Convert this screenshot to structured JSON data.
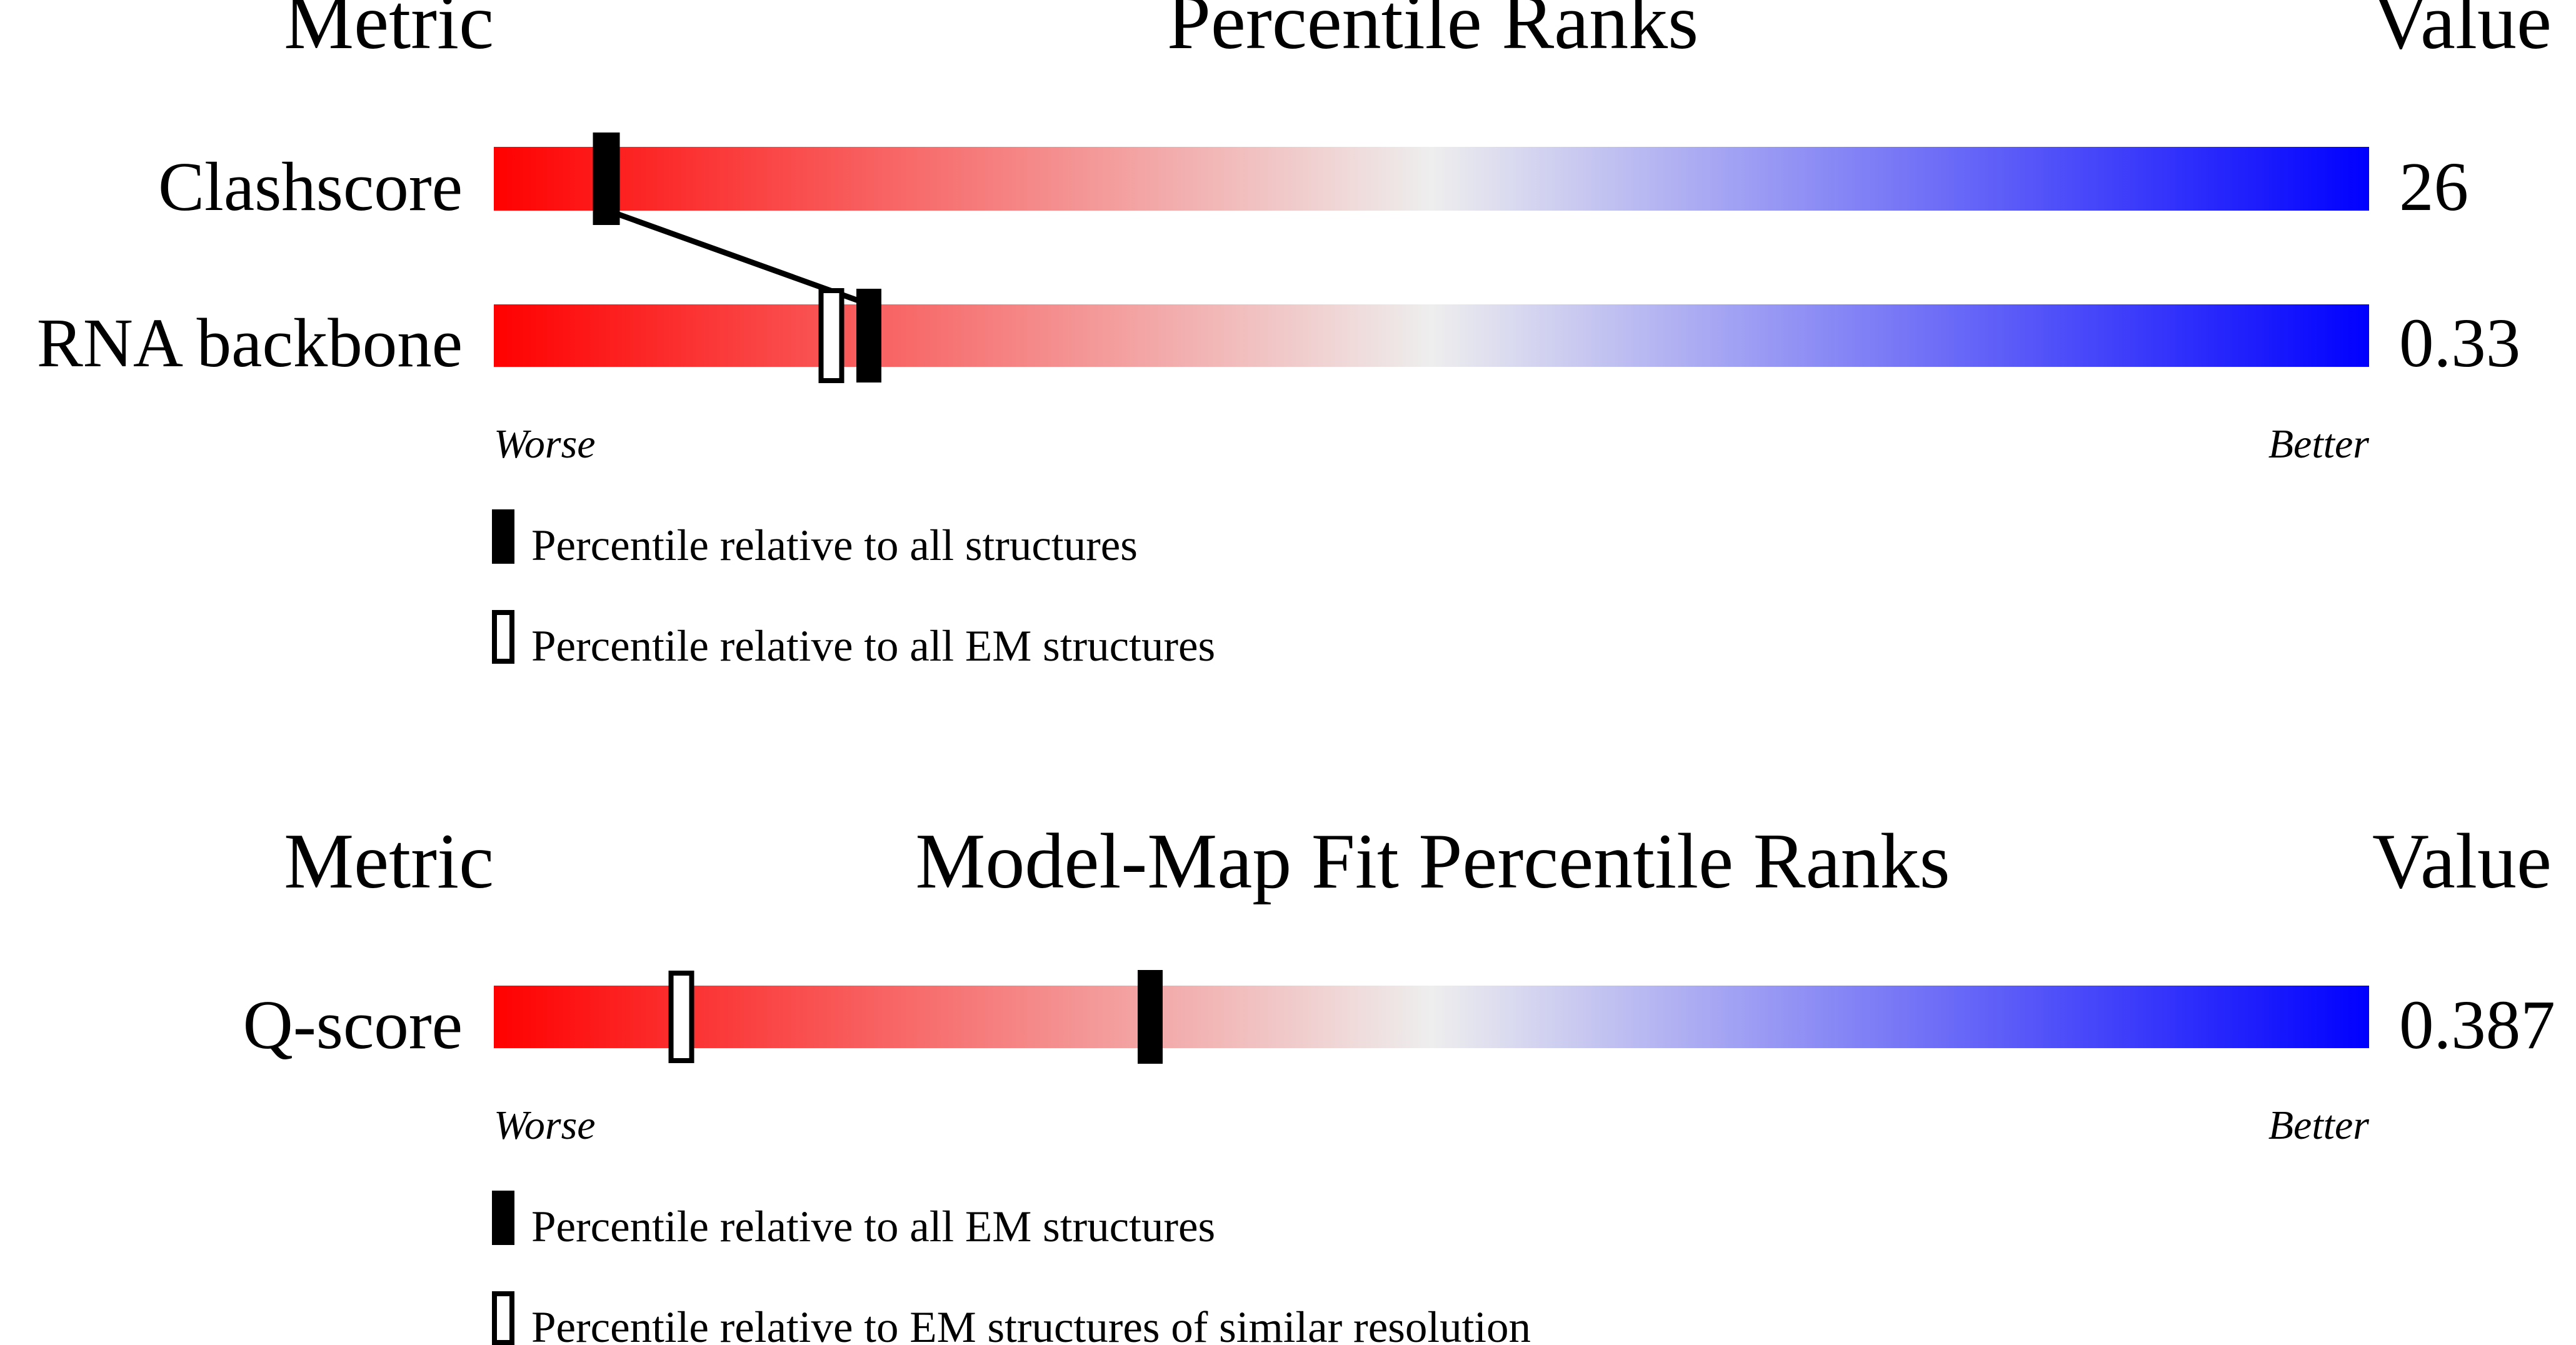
{
  "colors": {
    "worse": "#ff0000",
    "neutral": "#eeeeee",
    "better": "#0000ff",
    "marker": "#000000"
  },
  "chart_data": [
    {
      "type": "percentile-ranks",
      "headers": {
        "metric": "Metric",
        "title": "Percentile Ranks",
        "value": "Value"
      },
      "rows": [
        {
          "metric": "Clashscore",
          "value": "26",
          "percentile_all": 6,
          "percentile_subset": null
        },
        {
          "metric": "RNA backbone",
          "value": "0.33",
          "percentile_all": 20,
          "percentile_subset": 18
        }
      ],
      "scale": {
        "left": "Worse",
        "right": "Better",
        "range": [
          0,
          100
        ]
      },
      "legend": {
        "filled": "Percentile relative to all structures",
        "open": "Percentile relative to all EM structures"
      }
    },
    {
      "type": "percentile-ranks",
      "headers": {
        "metric": "Metric",
        "title": "Model-Map Fit Percentile Ranks",
        "value": "Value"
      },
      "rows": [
        {
          "metric": "Q-score",
          "value": "0.387",
          "percentile_all": 35,
          "percentile_subset": 10
        }
      ],
      "scale": {
        "left": "Worse",
        "right": "Better",
        "range": [
          0,
          100
        ]
      },
      "legend": {
        "filled": "Percentile relative to all EM structures",
        "open": "Percentile relative to EM structures of similar resolution"
      }
    }
  ]
}
